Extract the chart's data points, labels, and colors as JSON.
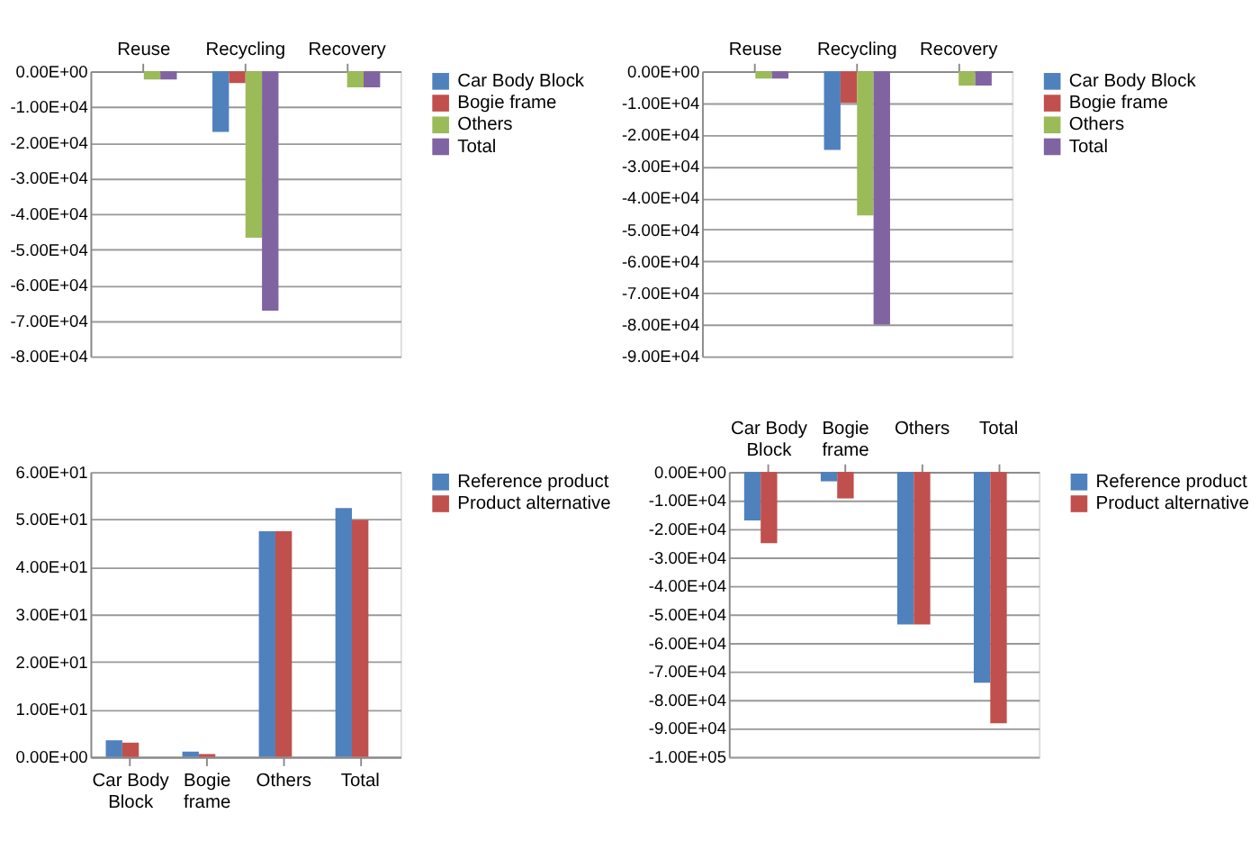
{
  "chart_data": [
    {
      "type": "bar",
      "categories": [
        "Reuse",
        "Recycling",
        "Recovery"
      ],
      "ylim": [
        -80000,
        0
      ],
      "yticks": [
        {
          "value": 0,
          "label": "0.00E+00"
        },
        {
          "value": -10000,
          "label": "-1.00E+04"
        },
        {
          "value": -20000,
          "label": "-2.00E+04"
        },
        {
          "value": -30000,
          "label": "-3.00E+04"
        },
        {
          "value": -40000,
          "label": "-4.00E+04"
        },
        {
          "value": -50000,
          "label": "-5.00E+04"
        },
        {
          "value": -60000,
          "label": "-6.00E+04"
        },
        {
          "value": -70000,
          "label": "-7.00E+04"
        },
        {
          "value": -80000,
          "label": "-8.00E+04"
        }
      ],
      "grid": "y",
      "legend": "right",
      "series": [
        {
          "name": "Car Body Block",
          "color": "#4f81bd",
          "values": [
            0,
            -17000,
            0
          ]
        },
        {
          "name": "Bogie frame",
          "color": "#c0504d",
          "values": [
            0,
            -3300,
            0
          ]
        },
        {
          "name": "Others",
          "color": "#9bbb59",
          "values": [
            -2300,
            -46700,
            -4500
          ]
        },
        {
          "name": "Total",
          "color": "#8064a2",
          "values": [
            -2300,
            -67200,
            -4500
          ]
        }
      ]
    },
    {
      "type": "bar",
      "categories": [
        "Reuse",
        "Recycling",
        "Recovery"
      ],
      "ylim": [
        -90000,
        0
      ],
      "yticks": [
        {
          "value": 0,
          "label": "0.00E+00"
        },
        {
          "value": -10000,
          "label": "-1.00E+04"
        },
        {
          "value": -20000,
          "label": "-2.00E+04"
        },
        {
          "value": -30000,
          "label": "-3.00E+04"
        },
        {
          "value": -40000,
          "label": "-4.00E+04"
        },
        {
          "value": -50000,
          "label": "-5.00E+04"
        },
        {
          "value": -60000,
          "label": "-6.00E+04"
        },
        {
          "value": -70000,
          "label": "-7.00E+04"
        },
        {
          "value": -80000,
          "label": "-8.00E+04"
        },
        {
          "value": -90000,
          "label": "-9.00E+04"
        }
      ],
      "grid": "y",
      "legend": "right",
      "series": [
        {
          "name": "Car Body Block",
          "color": "#4f81bd",
          "values": [
            0,
            -24800,
            0
          ]
        },
        {
          "name": "Bogie frame",
          "color": "#c0504d",
          "values": [
            0,
            -10000,
            0
          ]
        },
        {
          "name": "Others",
          "color": "#9bbb59",
          "values": [
            -2300,
            -45500,
            -4500
          ]
        },
        {
          "name": "Total",
          "color": "#8064a2",
          "values": [
            -2300,
            -80000,
            -4500
          ]
        }
      ]
    },
    {
      "type": "bar",
      "categories": [
        "Car Body Block",
        "Bogie frame",
        "Others",
        "Total"
      ],
      "ylim": [
        0,
        60
      ],
      "yticks": [
        {
          "value": 0,
          "label": "0.00E+00"
        },
        {
          "value": 10,
          "label": "1.00E+01"
        },
        {
          "value": 20,
          "label": "2.00E+01"
        },
        {
          "value": 30,
          "label": "3.00E+01"
        },
        {
          "value": 40,
          "label": "4.00E+01"
        },
        {
          "value": 50,
          "label": "5.00E+01"
        },
        {
          "value": 60,
          "label": "6.00E+01"
        }
      ],
      "grid": "y",
      "legend": "right",
      "series": [
        {
          "name": "Reference product",
          "color": "#4f81bd",
          "values": [
            3.5,
            1.1,
            47.5,
            52.4
          ]
        },
        {
          "name": "Product alternative",
          "color": "#c0504d",
          "values": [
            3.0,
            0.6,
            47.5,
            49.9
          ]
        }
      ]
    },
    {
      "type": "bar",
      "categories": [
        "Car Body Block",
        "Bogie frame",
        "Others",
        "Total"
      ],
      "ylim": [
        -100000,
        0
      ],
      "yticks": [
        {
          "value": 0,
          "label": "0.00E+00"
        },
        {
          "value": -10000,
          "label": "-1.00E+04"
        },
        {
          "value": -20000,
          "label": "-2.00E+04"
        },
        {
          "value": -30000,
          "label": "-3.00E+04"
        },
        {
          "value": -40000,
          "label": "-4.00E+04"
        },
        {
          "value": -50000,
          "label": "-5.00E+04"
        },
        {
          "value": -60000,
          "label": "-6.00E+04"
        },
        {
          "value": -70000,
          "label": "-7.00E+04"
        },
        {
          "value": -80000,
          "label": "-8.00E+04"
        },
        {
          "value": -90000,
          "label": "-9.00E+04"
        },
        {
          "value": -100000,
          "label": "-1.00E+05"
        }
      ],
      "grid": "y",
      "legend": "right",
      "series": [
        {
          "name": "Reference product",
          "color": "#4f81bd",
          "values": [
            -17000,
            -3300,
            -53500,
            -74000
          ]
        },
        {
          "name": "Product alternative",
          "color": "#c0504d",
          "values": [
            -25000,
            -9300,
            -53500,
            -88200
          ]
        }
      ]
    }
  ]
}
